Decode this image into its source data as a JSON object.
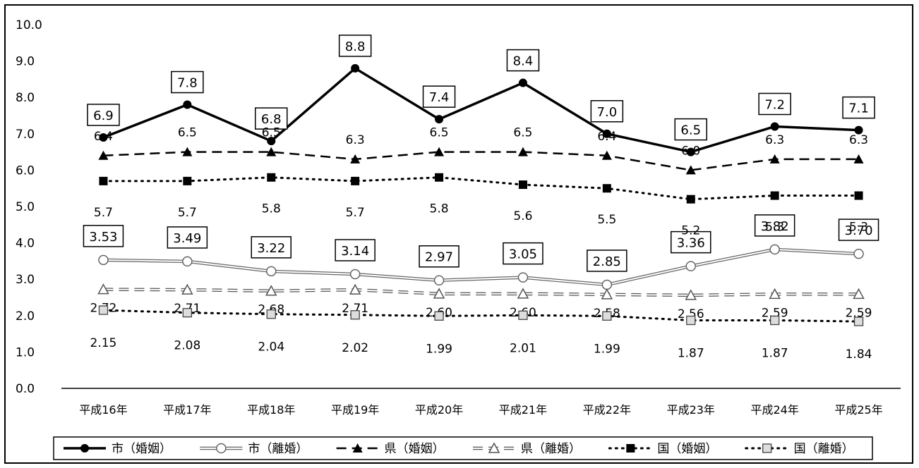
{
  "chart_data": {
    "type": "line",
    "categories": [
      "平成16年",
      "平成17年",
      "平成18年",
      "平成19年",
      "平成20年",
      "平成21年",
      "平成22年",
      "平成23年",
      "平成24年",
      "平成25年"
    ],
    "ylim": [
      0,
      10
    ],
    "yticks": [
      "0.0",
      "1.0",
      "2.0",
      "3.0",
      "4.0",
      "5.0",
      "6.0",
      "7.0",
      "8.0",
      "9.0",
      "10.0"
    ],
    "legend_position": "bottom",
    "series": [
      {
        "name": "市（婚姻）",
        "values": [
          6.9,
          7.8,
          6.8,
          8.8,
          7.4,
          8.4,
          7.0,
          6.5,
          7.2,
          7.1
        ],
        "labels": [
          "6.9",
          "7.8",
          "6.8",
          "8.8",
          "7.4",
          "8.4",
          "7.0",
          "6.5",
          "7.2",
          "7.1"
        ],
        "color": "#000000",
        "line": "solid-thick",
        "marker": "circle-filled",
        "boxed_labels": true
      },
      {
        "name": "市（離婚）",
        "values": [
          3.53,
          3.49,
          3.22,
          3.14,
          2.97,
          3.05,
          2.85,
          3.36,
          3.82,
          3.7
        ],
        "labels": [
          "3.53",
          "3.49",
          "3.22",
          "3.14",
          "2.97",
          "3.05",
          "2.85",
          "3.36",
          "3.82",
          "3.70"
        ],
        "color": "#777777",
        "line": "double",
        "marker": "circle-open",
        "boxed_labels": true
      },
      {
        "name": "県（婚姻）",
        "values": [
          6.4,
          6.5,
          6.5,
          6.3,
          6.5,
          6.5,
          6.4,
          6.0,
          6.3,
          6.3
        ],
        "labels": [
          "6.4",
          "6.5",
          "6.5",
          "6.3",
          "6.5",
          "6.5",
          "6.4",
          "6.0",
          "6.3",
          "6.3"
        ],
        "color": "#000000",
        "line": "dashed",
        "marker": "triangle-filled",
        "boxed_labels": false
      },
      {
        "name": "県（離婚）",
        "values": [
          2.72,
          2.71,
          2.68,
          2.71,
          2.6,
          2.6,
          2.58,
          2.56,
          2.59,
          2.59
        ],
        "labels": [
          "2.72",
          "2.71",
          "2.68",
          "2.71",
          "2.60",
          "2.60",
          "2.58",
          "2.56",
          "2.59",
          "2.59"
        ],
        "color": "#555555",
        "line": "dashed-double",
        "marker": "triangle-open",
        "boxed_labels": false
      },
      {
        "name": "国（婚姻）",
        "values": [
          5.7,
          5.7,
          5.8,
          5.7,
          5.8,
          5.6,
          5.5,
          5.2,
          5.3,
          5.3
        ],
        "labels": [
          "5.7",
          "5.7",
          "5.8",
          "5.7",
          "5.8",
          "5.6",
          "5.5",
          "5.2",
          "5.3",
          "5.3"
        ],
        "color": "#000000",
        "line": "dotted",
        "marker": "square-filled",
        "boxed_labels": false
      },
      {
        "name": "国（離婚）",
        "values": [
          2.15,
          2.08,
          2.04,
          2.02,
          1.99,
          2.01,
          1.99,
          1.87,
          1.87,
          1.84
        ],
        "labels": [
          "2.15",
          "2.08",
          "2.04",
          "2.02",
          "1.99",
          "2.01",
          "1.99",
          "1.87",
          "1.87",
          "1.84"
        ],
        "color": "#000000",
        "line": "dotted",
        "marker": "square-hatched",
        "boxed_labels": false
      }
    ]
  }
}
